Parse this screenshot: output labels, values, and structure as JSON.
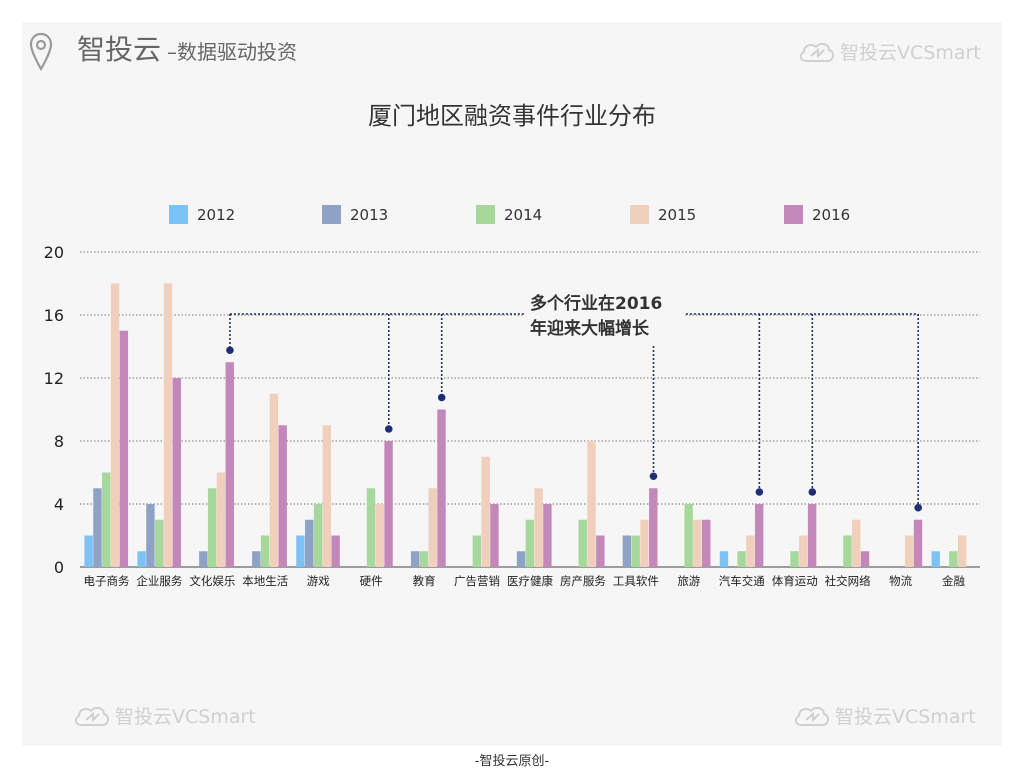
{
  "brand": {
    "name": "智投云",
    "separator": "–",
    "slogan": "数据驱动投资",
    "logo_text": "智投云VCSmart"
  },
  "footer": "-智投云原创-",
  "colors": {
    "2012": "#7dc2f5",
    "2013": "#8ea2c6",
    "2014": "#a5d89a",
    "2015": "#f0cfbc",
    "2016": "#c487b9",
    "annotation": "#1f2f73",
    "grid": "#777777",
    "panel": "#f6f6f6"
  },
  "chart_data": {
    "type": "bar",
    "title": "厦门地区融资事件行业分布",
    "xlabel": "",
    "ylabel": "",
    "ylim": [
      0,
      20
    ],
    "yticks": [
      0,
      4,
      8,
      12,
      16,
      20
    ],
    "grid": true,
    "legend_position": "top",
    "categories": [
      "电子商务",
      "企业服务",
      "文化娱乐",
      "本地生活",
      "游戏",
      "硬件",
      "教育",
      "广告营销",
      "医疗健康",
      "房产服务",
      "工具软件",
      "旅游",
      "汽车交通",
      "体育运动",
      "社交网络",
      "物流",
      "金融"
    ],
    "series": [
      {
        "name": "2012",
        "values": [
          2,
          1,
          0,
          0,
          2,
          0,
          0,
          0,
          0,
          0,
          0,
          0,
          1,
          0,
          0,
          0,
          1
        ]
      },
      {
        "name": "2013",
        "values": [
          5,
          4,
          1,
          1,
          3,
          0,
          1,
          0,
          1,
          0,
          2,
          0,
          0,
          0,
          0,
          0,
          0
        ]
      },
      {
        "name": "2014",
        "values": [
          6,
          3,
          5,
          2,
          4,
          5,
          1,
          2,
          3,
          3,
          2,
          4,
          1,
          1,
          2,
          0,
          1
        ]
      },
      {
        "name": "2015",
        "values": [
          18,
          18,
          6,
          11,
          9,
          4,
          5,
          7,
          5,
          8,
          3,
          3,
          2,
          2,
          3,
          2,
          2
        ]
      },
      {
        "name": "2016",
        "values": [
          15,
          12,
          13,
          9,
          2,
          8,
          10,
          4,
          4,
          2,
          5,
          3,
          4,
          4,
          1,
          3,
          0
        ]
      }
    ],
    "annotation": {
      "lines": [
        "多个行业在2016",
        "年迎来大幅增长"
      ],
      "categories": [
        "文化娱乐",
        "硬件",
        "教育",
        "工具软件",
        "汽车交通",
        "体育运动",
        "物流"
      ]
    }
  }
}
